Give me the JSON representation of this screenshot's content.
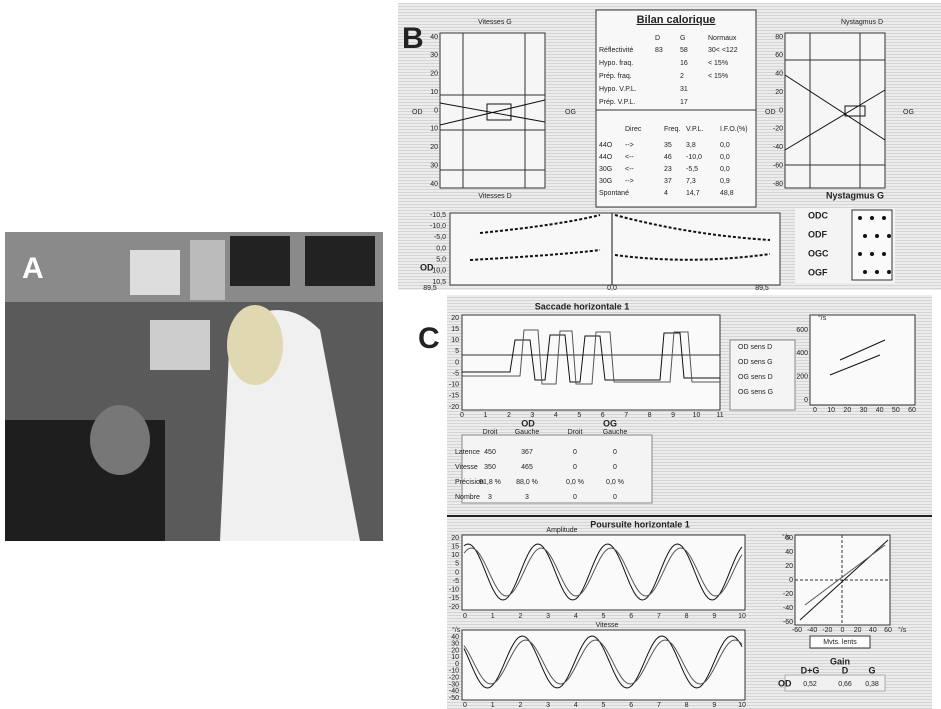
{
  "panels": {
    "A": {
      "label": "A"
    },
    "B": {
      "label": "B",
      "title": "Bilan calorique",
      "left_chart": {
        "top_label": "Vitesses G",
        "bottom_label": "Vitesses D",
        "left_label": "OD",
        "right_label": "OG",
        "ticks": [
          "40",
          "30",
          "20",
          "10",
          "0",
          "10",
          "20",
          "30",
          "40"
        ]
      },
      "right_chart": {
        "top_label": "Nystagmus D",
        "bottom_label": "Nystagmus G",
        "left_label": "OD",
        "right_label": "OG",
        "ticks": [
          "80",
          "60",
          "40",
          "20",
          "0",
          "-20",
          "-40",
          "-60",
          "-80"
        ]
      },
      "summary_table": {
        "header": [
          null,
          "D",
          "G",
          "Normaux"
        ],
        "rows": [
          [
            "Réflectivité",
            "83",
            "58",
            "30< <122"
          ],
          [
            "Hypo. fraq.",
            null,
            "16",
            "< 15%"
          ],
          [
            "Prép. fraq.",
            null,
            "2",
            "< 15%"
          ],
          [
            "Hypo. V.P.L.",
            null,
            "31",
            null
          ],
          [
            "Prép. V.P.L.",
            null,
            "17",
            null
          ]
        ]
      },
      "detail_table": {
        "header": [
          null,
          "Direc",
          "Freq.",
          "V.P.L.",
          "I.F.O.(%)"
        ],
        "rows": [
          [
            "44O",
            "-->",
            "35",
            "3,8",
            "0,0"
          ],
          [
            "44O",
            "<--",
            "46",
            "-10,0",
            "0,0"
          ],
          [
            "30G",
            "<--",
            "23",
            "-5,5",
            "0,0"
          ],
          [
            "30G",
            "-->",
            "37",
            "7,3",
            "0,9"
          ],
          [
            "Spontané",
            null,
            "4",
            "14,7",
            "48,8"
          ]
        ]
      },
      "bottom_chart": {
        "y_ticks": [
          "-10,5",
          "-10,0",
          "-5,0",
          "0,0",
          "5,0",
          "10,0",
          "10,5"
        ],
        "x_ticks": [
          "89,5",
          "0,0",
          "89,5"
        ],
        "label": "OD"
      },
      "legend": [
        "ODC",
        "ODF",
        "OGC",
        "OGF"
      ]
    },
    "C": {
      "label": "C",
      "saccade": {
        "title": "Saccade horizontale 1",
        "y_ticks": [
          "20",
          "15",
          "10",
          "5",
          "0",
          "-5",
          "-10",
          "-15",
          "-20"
        ],
        "x_ticks": [
          "0",
          "1",
          "2",
          "3",
          "4",
          "5",
          "6",
          "7",
          "8",
          "9",
          "10",
          "11"
        ],
        "legend": [
          "OD sens D",
          "OD sens G",
          "OG sens D",
          "OG sens G"
        ],
        "scatter": {
          "unit": "°/s",
          "y_ticks": [
            "600",
            "400",
            "200",
            "0"
          ],
          "x_ticks": [
            "0",
            "10",
            "20",
            "30",
            "40",
            "50",
            "60"
          ]
        }
      },
      "table": {
        "groups": [
          "OD",
          "OG"
        ],
        "subheaders": [
          "Droit",
          "Gauche",
          "Droit",
          "Gauche"
        ],
        "rows": [
          [
            "Latence",
            "450",
            "367",
            "0",
            "0"
          ],
          [
            "Vitesse",
            "350",
            "465",
            "0",
            "0"
          ],
          [
            "Précision",
            "91,8 %",
            "88,0 %",
            "0,0 %",
            "0,0 %"
          ],
          [
            "Nombre",
            "3",
            "3",
            "0",
            "0"
          ]
        ]
      },
      "pursuit": {
        "title": "Poursuite horizontale 1",
        "amplitude": {
          "title": "Amplitude",
          "y_ticks": [
            "20",
            "15",
            "10",
            "5",
            "0",
            "-5",
            "-10",
            "-15",
            "-20"
          ],
          "x_ticks": [
            "0",
            "1",
            "2",
            "3",
            "4",
            "5",
            "6",
            "7",
            "8",
            "9",
            "10"
          ]
        },
        "velocity": {
          "title": "Vitesse",
          "unit": "°/s",
          "y_ticks": [
            "40",
            "30",
            "20",
            "10",
            "0",
            "-10",
            "-20",
            "-30",
            "-40",
            "-50"
          ],
          "x_ticks": [
            "0",
            "1",
            "2",
            "3",
            "4",
            "5",
            "6",
            "7",
            "8",
            "9",
            "10"
          ]
        },
        "scatter": {
          "unit": "°/s",
          "y_ticks": [
            "60",
            "40",
            "20",
            "0",
            "-20",
            "-40",
            "-60"
          ],
          "x_ticks": [
            "-60",
            "-40",
            "-20",
            "0",
            "20",
            "40",
            "60"
          ],
          "x_unit": "°/s",
          "button": "Mvts. lents"
        },
        "gain": {
          "title": "Gain",
          "headers": [
            "D+G",
            "D",
            "G"
          ],
          "row_label": "OD",
          "values": [
            "0,52",
            "0,66",
            "0,38"
          ]
        }
      }
    }
  }
}
